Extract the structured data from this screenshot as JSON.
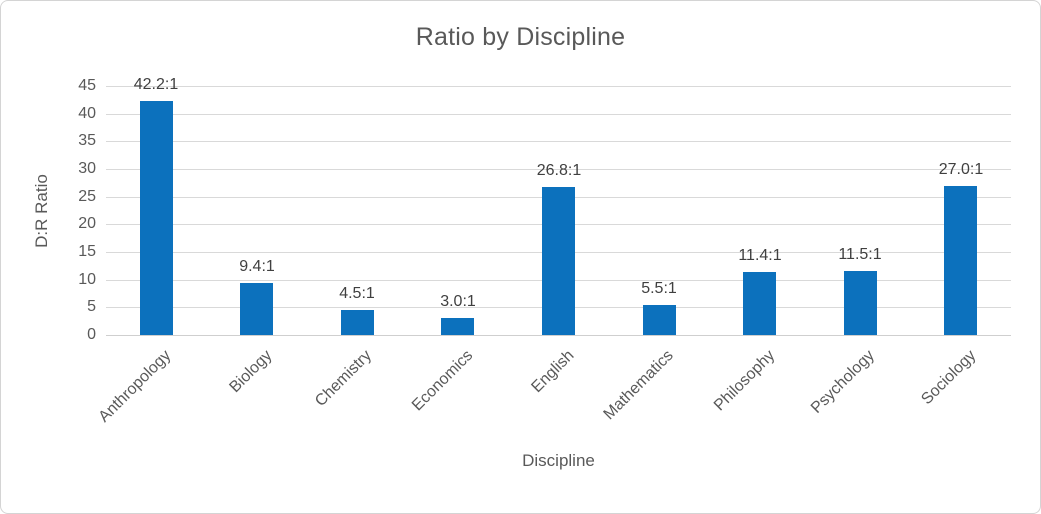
{
  "chart_data": {
    "type": "bar",
    "title": "Ratio by Discipline",
    "xlabel": "Discipline",
    "ylabel": "D:R Ratio",
    "categories": [
      "Anthropology",
      "Biology",
      "Chemistry",
      "Economics",
      "English",
      "Mathematics",
      "Philosophy",
      "Psychology",
      "Sociology"
    ],
    "values": [
      42.2,
      9.4,
      4.5,
      3.0,
      26.8,
      5.5,
      11.4,
      11.5,
      27.0
    ],
    "bar_labels": [
      "42.2:1",
      "9.4:1",
      "4.5:1",
      "3.0:1",
      "26.8:1",
      "5.5:1",
      "11.4:1",
      "11.5:1",
      "27.0:1"
    ],
    "yticks": [
      0,
      5,
      10,
      15,
      20,
      25,
      30,
      35,
      40,
      45
    ],
    "ylim": [
      0,
      45
    ],
    "grid": true,
    "legend": "none",
    "colors": {
      "bar": "#0c71bd",
      "gridline": "#d9d9d9",
      "axis_text": "#595959",
      "data_label": "#404040"
    }
  }
}
